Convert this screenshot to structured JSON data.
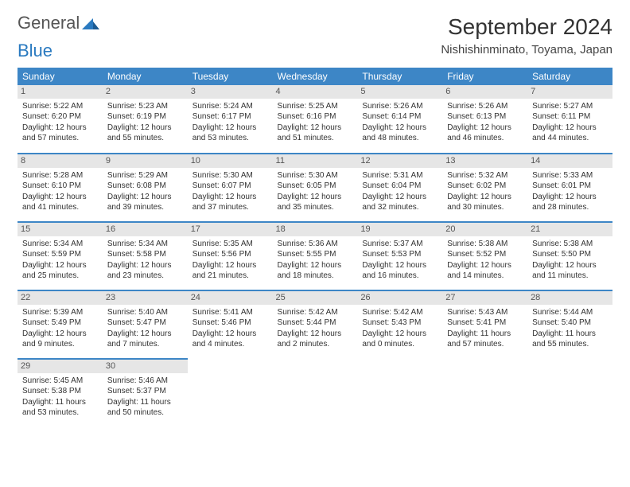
{
  "logo": {
    "word1": "General",
    "word2": "Blue"
  },
  "title": "September 2024",
  "subtitle": "Nishishinminato, Toyama, Japan",
  "colors": {
    "header_bg": "#3d86c6",
    "header_text": "#ffffff",
    "daynum_bg": "#e6e6e6",
    "row_border": "#3d86c6",
    "logo_blue": "#2a7ac0"
  },
  "weekdays": [
    "Sunday",
    "Monday",
    "Tuesday",
    "Wednesday",
    "Thursday",
    "Friday",
    "Saturday"
  ],
  "days": [
    {
      "n": "1",
      "sr": "5:22 AM",
      "ss": "6:20 PM",
      "dl": "12 hours and 57 minutes."
    },
    {
      "n": "2",
      "sr": "5:23 AM",
      "ss": "6:19 PM",
      "dl": "12 hours and 55 minutes."
    },
    {
      "n": "3",
      "sr": "5:24 AM",
      "ss": "6:17 PM",
      "dl": "12 hours and 53 minutes."
    },
    {
      "n": "4",
      "sr": "5:25 AM",
      "ss": "6:16 PM",
      "dl": "12 hours and 51 minutes."
    },
    {
      "n": "5",
      "sr": "5:26 AM",
      "ss": "6:14 PM",
      "dl": "12 hours and 48 minutes."
    },
    {
      "n": "6",
      "sr": "5:26 AM",
      "ss": "6:13 PM",
      "dl": "12 hours and 46 minutes."
    },
    {
      "n": "7",
      "sr": "5:27 AM",
      "ss": "6:11 PM",
      "dl": "12 hours and 44 minutes."
    },
    {
      "n": "8",
      "sr": "5:28 AM",
      "ss": "6:10 PM",
      "dl": "12 hours and 41 minutes."
    },
    {
      "n": "9",
      "sr": "5:29 AM",
      "ss": "6:08 PM",
      "dl": "12 hours and 39 minutes."
    },
    {
      "n": "10",
      "sr": "5:30 AM",
      "ss": "6:07 PM",
      "dl": "12 hours and 37 minutes."
    },
    {
      "n": "11",
      "sr": "5:30 AM",
      "ss": "6:05 PM",
      "dl": "12 hours and 35 minutes."
    },
    {
      "n": "12",
      "sr": "5:31 AM",
      "ss": "6:04 PM",
      "dl": "12 hours and 32 minutes."
    },
    {
      "n": "13",
      "sr": "5:32 AM",
      "ss": "6:02 PM",
      "dl": "12 hours and 30 minutes."
    },
    {
      "n": "14",
      "sr": "5:33 AM",
      "ss": "6:01 PM",
      "dl": "12 hours and 28 minutes."
    },
    {
      "n": "15",
      "sr": "5:34 AM",
      "ss": "5:59 PM",
      "dl": "12 hours and 25 minutes."
    },
    {
      "n": "16",
      "sr": "5:34 AM",
      "ss": "5:58 PM",
      "dl": "12 hours and 23 minutes."
    },
    {
      "n": "17",
      "sr": "5:35 AM",
      "ss": "5:56 PM",
      "dl": "12 hours and 21 minutes."
    },
    {
      "n": "18",
      "sr": "5:36 AM",
      "ss": "5:55 PM",
      "dl": "12 hours and 18 minutes."
    },
    {
      "n": "19",
      "sr": "5:37 AM",
      "ss": "5:53 PM",
      "dl": "12 hours and 16 minutes."
    },
    {
      "n": "20",
      "sr": "5:38 AM",
      "ss": "5:52 PM",
      "dl": "12 hours and 14 minutes."
    },
    {
      "n": "21",
      "sr": "5:38 AM",
      "ss": "5:50 PM",
      "dl": "12 hours and 11 minutes."
    },
    {
      "n": "22",
      "sr": "5:39 AM",
      "ss": "5:49 PM",
      "dl": "12 hours and 9 minutes."
    },
    {
      "n": "23",
      "sr": "5:40 AM",
      "ss": "5:47 PM",
      "dl": "12 hours and 7 minutes."
    },
    {
      "n": "24",
      "sr": "5:41 AM",
      "ss": "5:46 PM",
      "dl": "12 hours and 4 minutes."
    },
    {
      "n": "25",
      "sr": "5:42 AM",
      "ss": "5:44 PM",
      "dl": "12 hours and 2 minutes."
    },
    {
      "n": "26",
      "sr": "5:42 AM",
      "ss": "5:43 PM",
      "dl": "12 hours and 0 minutes."
    },
    {
      "n": "27",
      "sr": "5:43 AM",
      "ss": "5:41 PM",
      "dl": "11 hours and 57 minutes."
    },
    {
      "n": "28",
      "sr": "5:44 AM",
      "ss": "5:40 PM",
      "dl": "11 hours and 55 minutes."
    },
    {
      "n": "29",
      "sr": "5:45 AM",
      "ss": "5:38 PM",
      "dl": "11 hours and 53 minutes."
    },
    {
      "n": "30",
      "sr": "5:46 AM",
      "ss": "5:37 PM",
      "dl": "11 hours and 50 minutes."
    }
  ],
  "labels": {
    "sunrise": "Sunrise: ",
    "sunset": "Sunset: ",
    "daylight": "Daylight: "
  }
}
